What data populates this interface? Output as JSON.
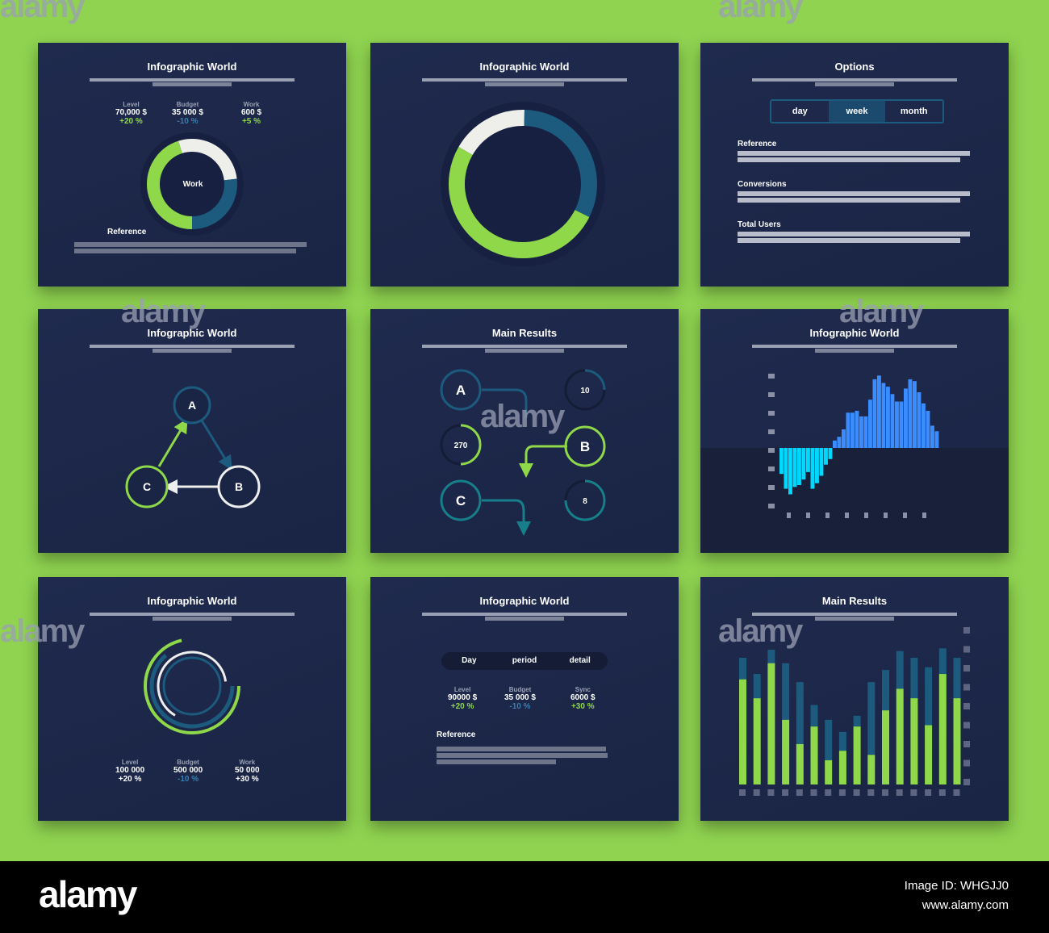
{
  "colors": {
    "background": "#8fd350",
    "panel": "#1e284b",
    "green": "#8fd84a",
    "blue": "#1c5a7e",
    "white": "#eeeeea",
    "cyan": "#00d8ff",
    "bright_blue": "#3a8cff"
  },
  "panels": {
    "p1": {
      "title": "Infographic World",
      "stats": [
        {
          "label": "Level",
          "value": "70,000 $",
          "delta": "+20 %"
        },
        {
          "label": "Budget",
          "value": "35 000 $",
          "delta": "-10 %"
        },
        {
          "label": "Work",
          "value": "600 $",
          "delta": "+5 %"
        }
      ],
      "center": "Work",
      "ref": "Reference",
      "donut": [
        {
          "color": "green",
          "value": 45
        },
        {
          "color": "white",
          "value": 28
        },
        {
          "color": "blue",
          "value": 27
        }
      ]
    },
    "p2": {
      "title": "Infographic World",
      "donut": [
        {
          "color": "white",
          "value": 17
        },
        {
          "color": "blue",
          "value": 32
        },
        {
          "color": "green",
          "value": 51
        }
      ]
    },
    "p3": {
      "title": "Options",
      "tabs": [
        "day",
        "week",
        "month"
      ],
      "active_tab": "week",
      "sections": [
        "Reference",
        "Conversions",
        "Total Users"
      ]
    },
    "p4": {
      "title": "Infographic World",
      "nodes": [
        "A",
        "B",
        "C"
      ]
    },
    "p5": {
      "title": "Main Results",
      "nodes": [
        "A",
        "B",
        "C"
      ],
      "values": [
        "10",
        "270",
        "8"
      ]
    },
    "p6": {
      "title": "Infographic World"
    },
    "p7": {
      "title": "Infographic World",
      "stats": [
        {
          "label": "Level",
          "value": "100 000",
          "delta": "+20 %"
        },
        {
          "label": "Budget",
          "value": "500 000",
          "delta": "-10 %"
        },
        {
          "label": "Work",
          "value": "50 000",
          "delta": "+30 %"
        }
      ]
    },
    "p8": {
      "title": "Infographic World",
      "tabs": [
        "Day",
        "period",
        "detail"
      ],
      "stats": [
        {
          "label": "Level",
          "value": "90000 $",
          "delta": "+20 %"
        },
        {
          "label": "Budget",
          "value": "35 000 $",
          "delta": "-10 %"
        },
        {
          "label": "Sync",
          "value": "6000 $",
          "delta": "+30 %"
        }
      ],
      "ref": "Reference"
    },
    "p9": {
      "title": "Main Results"
    }
  },
  "chart_data": [
    {
      "type": "bar",
      "title": "Infographic World",
      "values": [
        -1.4,
        -2.2,
        -2.5,
        -2.1,
        -2.0,
        -1.7,
        -1.3,
        -2.2,
        -1.9,
        -1.5,
        -0.9,
        -0.6,
        0.4,
        0.6,
        1.0,
        1.9,
        1.9,
        2.0,
        1.7,
        1.7,
        2.6,
        3.7,
        3.9,
        3.5,
        3.3,
        2.9,
        2.5,
        2.5,
        3.2,
        3.7,
        3.6,
        3.0,
        2.4,
        2.0,
        1.2,
        0.9
      ],
      "ylim": [
        -3,
        4
      ],
      "colors": {
        "negative": "#00d8ff",
        "positive": "#3a8cff"
      }
    },
    {
      "type": "bar",
      "title": "Main Results",
      "stacked": true,
      "series": [
        {
          "color": "#8fd84a",
          "values": [
            78,
            64,
            90,
            48,
            30,
            43,
            18,
            25,
            43,
            22,
            55,
            71,
            64,
            44,
            82,
            64
          ]
        },
        {
          "color": "#1c5a7e",
          "values": [
            16,
            18,
            10,
            42,
            46,
            16,
            30,
            14,
            8,
            54,
            30,
            28,
            30,
            43,
            19,
            30
          ]
        }
      ],
      "ylim": [
        0,
        100
      ]
    }
  ],
  "watermark": "alamy",
  "footer": {
    "logo": "alamy",
    "image_id": "Image ID: WHGJJ0",
    "url": "www.alamy.com"
  }
}
